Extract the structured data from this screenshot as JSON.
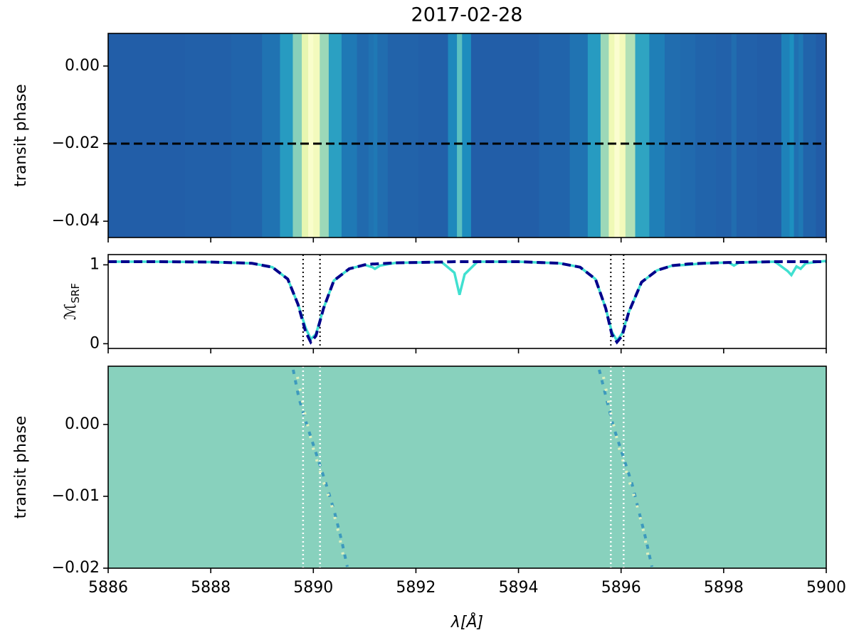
{
  "chart_data": [
    {
      "type": "heatmap",
      "title": "2017-02-28",
      "y_label": "transit phase",
      "xlim": [
        5886,
        5900
      ],
      "ylim": [
        -0.0442,
        0.0084
      ],
      "yticks": [
        {
          "value": 0,
          "label": "0.00"
        },
        {
          "value": -0.02,
          "label": "−0.02"
        },
        {
          "value": -0.04,
          "label": "−0.04"
        }
      ],
      "hlines": [
        -0.02
      ]
    },
    {
      "type": "line",
      "y_label": "ℳ",
      "y_label_sub": "SRF",
      "xlim": [
        5886,
        5900
      ],
      "ylim": [
        -0.06,
        1.13
      ],
      "yticks": [
        0,
        1
      ],
      "vlines": [
        5889.8,
        5890.13,
        5895.8,
        5896.05
      ],
      "x": [
        5886,
        5887,
        5888,
        5888.8,
        5889.2,
        5889.5,
        5889.7,
        5889.85,
        5889.95,
        5890.05,
        5890.2,
        5890.4,
        5890.7,
        5891.0,
        5891.15,
        5891.2,
        5891.3,
        5891.6,
        5892.5,
        5892.75,
        5892.85,
        5892.95,
        5893.2,
        5894,
        5894.8,
        5895.2,
        5895.5,
        5895.7,
        5895.82,
        5895.92,
        5896.02,
        5896.15,
        5896.4,
        5896.7,
        5897.0,
        5897.3,
        5897.6,
        5898.1,
        5898.2,
        5898.3,
        5899.0,
        5899.25,
        5899.32,
        5899.42,
        5899.5,
        5899.6,
        5900
      ],
      "series": [
        {
          "color": "#40e0d0",
          "dashed": false,
          "values": [
            1.04,
            1.04,
            1.035,
            1.02,
            0.97,
            0.82,
            0.5,
            0.2,
            0.06,
            0.12,
            0.45,
            0.8,
            0.95,
            1.0,
            0.97,
            0.95,
            0.99,
            1.025,
            1.035,
            0.9,
            0.62,
            0.88,
            1.04,
            1.04,
            1.02,
            0.97,
            0.82,
            0.45,
            0.15,
            0.04,
            0.13,
            0.4,
            0.78,
            0.93,
            0.99,
            1.0,
            1.02,
            1.03,
            0.99,
            1.03,
            1.04,
            0.92,
            0.87,
            0.98,
            0.95,
            1.02,
            1.05
          ]
        },
        {
          "color": "#00008b",
          "dashed": true,
          "values": [
            1.04,
            1.04,
            1.035,
            1.02,
            0.97,
            0.82,
            0.5,
            0.15,
            0.02,
            0.1,
            0.45,
            0.8,
            0.95,
            1.0,
            1.01,
            1.01,
            1.015,
            1.025,
            1.035,
            1.04,
            1.04,
            1.04,
            1.04,
            1.04,
            1.02,
            0.97,
            0.82,
            0.45,
            0.12,
            0.02,
            0.1,
            0.4,
            0.78,
            0.93,
            0.99,
            1.01,
            1.02,
            1.03,
            1.03,
            1.03,
            1.04,
            1.04,
            1.04,
            1.04,
            1.04,
            1.04,
            1.04
          ]
        }
      ]
    },
    {
      "type": "residual",
      "y_label": "transit phase",
      "x_label": "λ[Å]",
      "color": "#88d1bd",
      "xlim": [
        5886,
        5900
      ],
      "xticks": [
        5886,
        5888,
        5890,
        5892,
        5894,
        5896,
        5898,
        5900
      ],
      "ylim": [
        -0.02,
        0.0081
      ],
      "yticks": [
        {
          "value": 0,
          "label": "0.00"
        },
        {
          "value": -0.01,
          "label": "−0.01"
        },
        {
          "value": -0.02,
          "label": "−0.02"
        }
      ],
      "vlines": [
        5889.8,
        5890.13,
        5895.8,
        5896.05
      ]
    }
  ]
}
